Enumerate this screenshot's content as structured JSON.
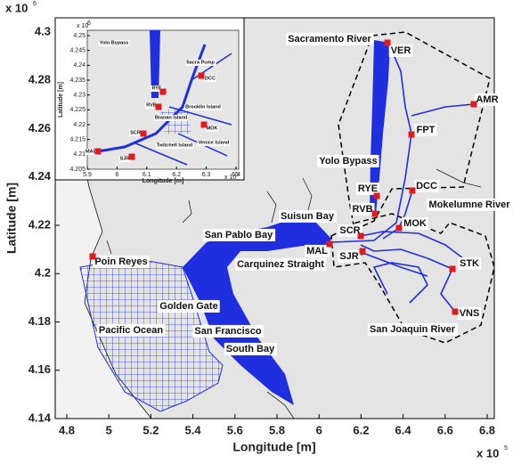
{
  "main": {
    "xlabel": "Longitude [m]",
    "ylabel": "Latitude [m]",
    "x_multiplier": "x 10",
    "x_exponent": "5",
    "y_multiplier": "x 10",
    "y_exponent": "6",
    "xticks": [
      4.8,
      5,
      5.2,
      5.4,
      5.6,
      5.8,
      6,
      6.2,
      6.4,
      6.6,
      6.8
    ],
    "yticks": [
      4.3,
      4.28,
      4.26,
      4.24,
      4.22,
      4.2,
      4.18,
      4.16,
      4.14
    ],
    "labels": [
      "Sacramento River",
      "VER",
      "AMR",
      "FPT",
      "Yolo Bypass",
      "RYE",
      "DCC",
      "RVB",
      "Mokelumne River",
      "MOK",
      "SCR",
      "Suisun Bay",
      "San Pablo Bay",
      "MAL",
      "SJR",
      "Carquinez Straight",
      "Poin Reyes",
      "STK",
      "Golden Gate",
      "VNS",
      "Pacific Ocean",
      "San Francisco",
      "San Joaquin River",
      "South Bay"
    ]
  },
  "inset": {
    "xlabel": "Longitude [m]",
    "ylabel": "Latitude [m]",
    "x_multiplier": "x 10",
    "x_exponent": "5",
    "y_multiplier": "x 10",
    "y_exponent": "6",
    "xticks": [
      5.9,
      6,
      6.1,
      6.2,
      6.3,
      6.4
    ],
    "yticks": [
      4.25,
      4.245,
      4.24,
      4.235,
      4.23,
      4.225,
      4.22,
      4.215,
      4.21,
      4.205
    ],
    "labels": [
      "Yolo Bypass",
      "Sacra Pump",
      "DCC",
      "RYE",
      "RVB",
      "Brooklin Island",
      "Branan Island",
      "MOK",
      "SCR",
      "Twitchell Island",
      "MAL",
      "SJR",
      "Venice Island"
    ]
  }
}
